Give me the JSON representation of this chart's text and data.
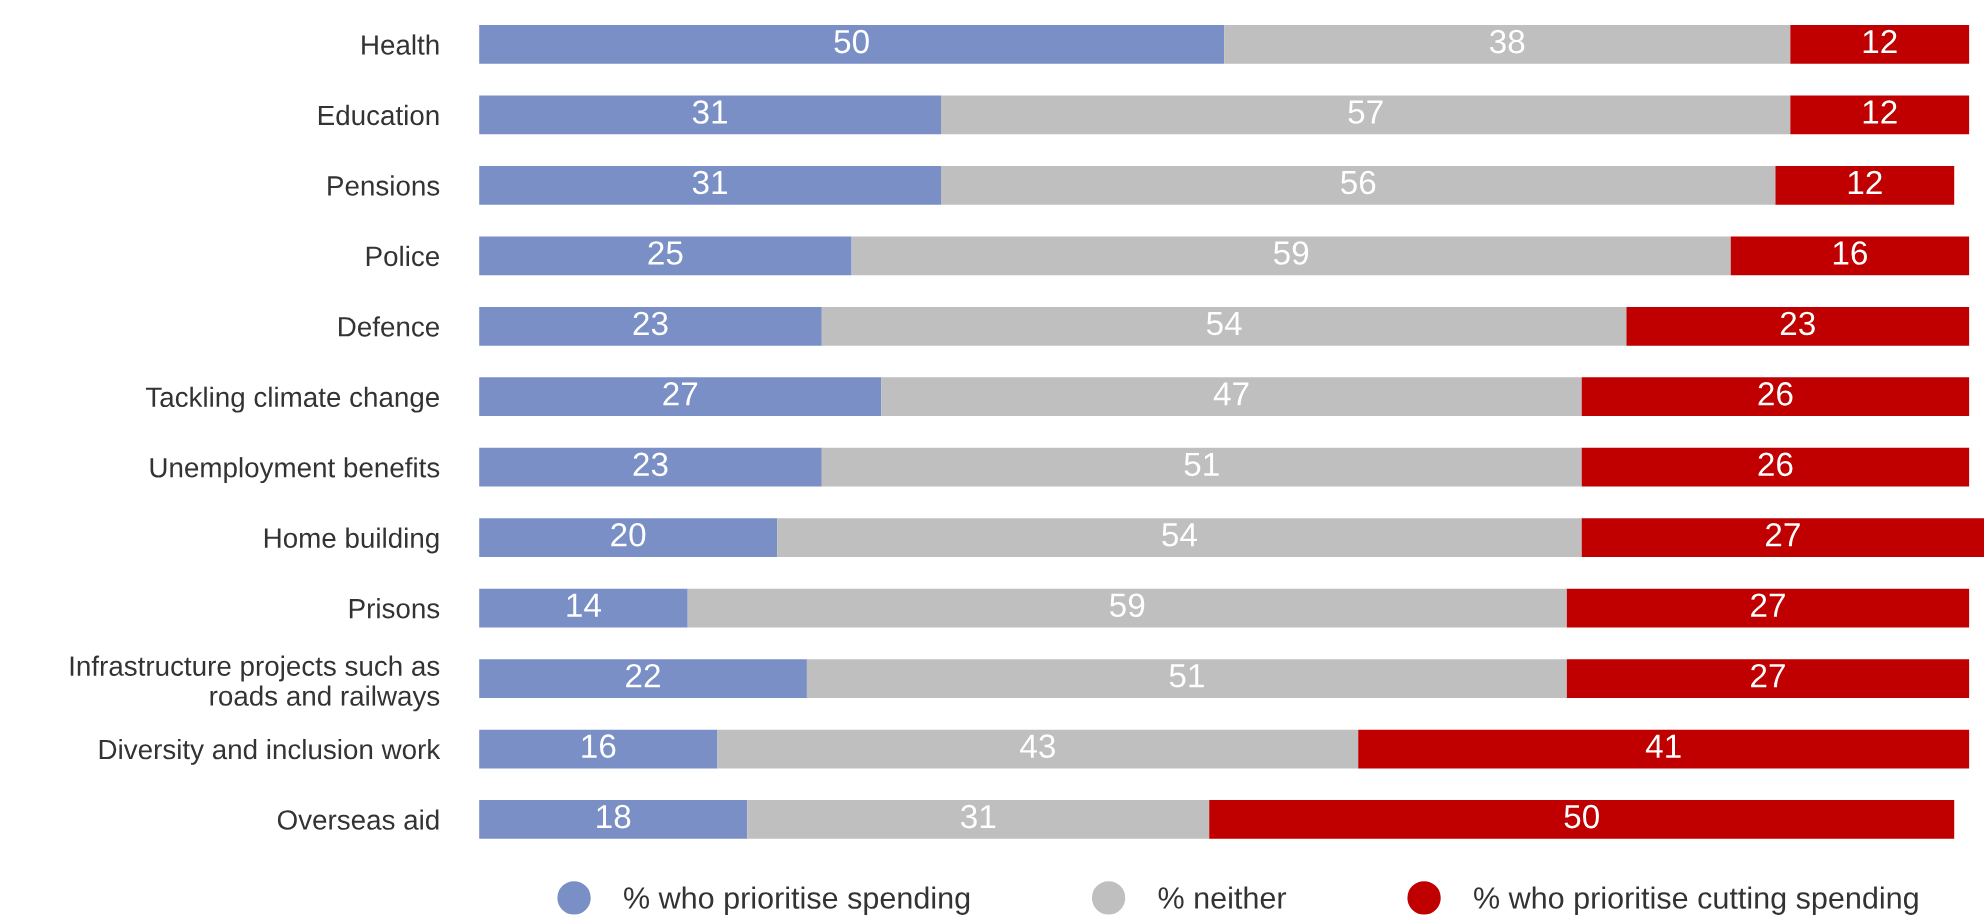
{
  "chart_data": {
    "type": "bar",
    "orientation": "horizontal",
    "stacked": true,
    "data_labels": true,
    "legend": "bottom",
    "grid": false,
    "categories": [
      "Health",
      "Education",
      "Pensions",
      "Police",
      "Defence",
      "Tackling climate change",
      "Unemployment benefits",
      "Home building",
      "Prisons",
      "Infrastructure projects such as\nroads and railways",
      "Diversity and inclusion work",
      "Overseas aid"
    ],
    "series": [
      {
        "name": "% who prioritise spending",
        "color": "#7b8fc7",
        "values": [
          50,
          31,
          31,
          25,
          23,
          27,
          23,
          20,
          14,
          22,
          16,
          18
        ]
      },
      {
        "name": "% neither",
        "color": "#bfbfbf",
        "values": [
          38,
          57,
          56,
          59,
          54,
          47,
          51,
          54,
          59,
          51,
          43,
          31
        ]
      },
      {
        "name": "% who prioritise cutting spending",
        "color": "#c00000",
        "values": [
          12,
          12,
          12,
          16,
          23,
          26,
          26,
          27,
          27,
          27,
          41,
          50
        ]
      }
    ]
  }
}
